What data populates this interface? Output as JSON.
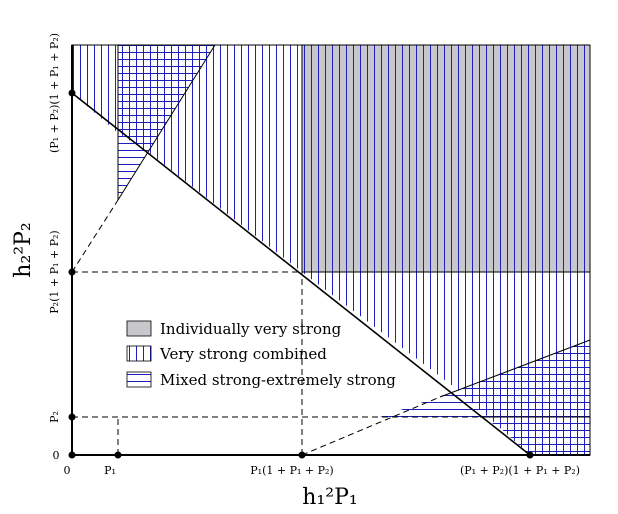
{
  "axes": {
    "x_title": "h₁²P₁",
    "y_title": "h₂²P₂",
    "x_ticks": [
      "0",
      "P₁",
      "P₁(1 + P₁ + P₂)",
      "(P₁ + P₂)(1 + P₁ + P₂)"
    ],
    "y_ticks": [
      "0",
      "P₂",
      "P₂(1 + P₁ + P₂)",
      "(P₁ + P₂)(1 + P₁ + P₂)"
    ]
  },
  "legend": {
    "items": [
      {
        "label": "Individually very strong",
        "pattern": "solid-gray"
      },
      {
        "label": "Very strong combined",
        "pattern": "vertical-hatch"
      },
      {
        "label": "Mixed strong-extremely strong",
        "pattern": "horizontal-hatch"
      }
    ]
  },
  "colors": {
    "hatch": "#1f1fbf",
    "gray_fill": "#c8c8cc",
    "line": "#000000"
  }
}
